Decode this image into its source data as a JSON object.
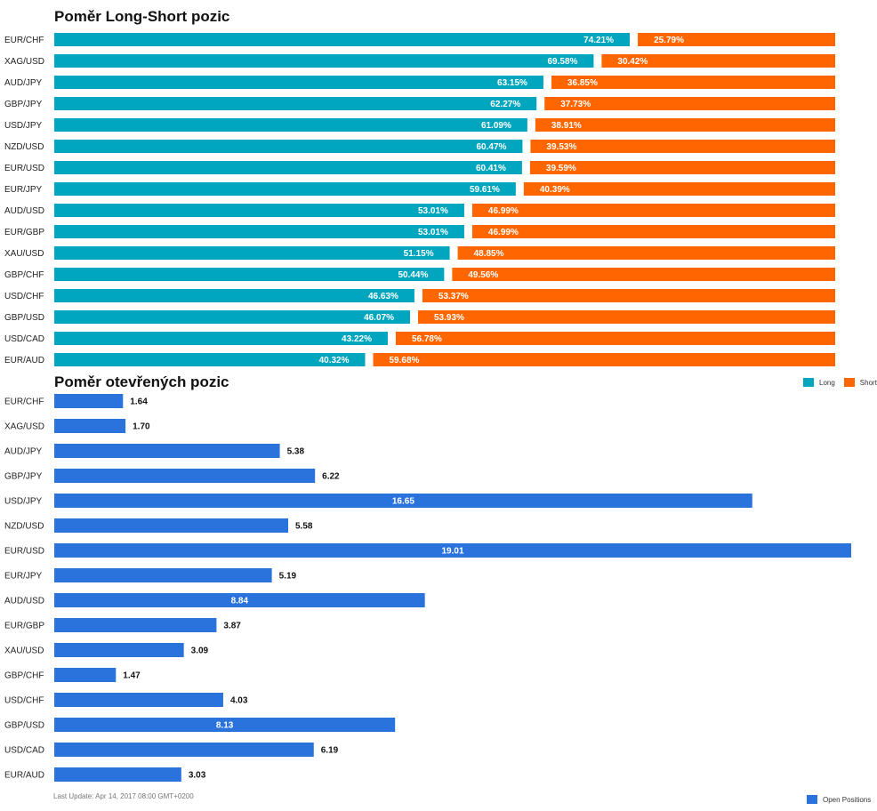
{
  "chart_data": [
    {
      "type": "bar",
      "orientation": "horizontal",
      "stacked": true,
      "title": "Poměr Long-Short pozic",
      "categories": [
        "EUR/CHF",
        "XAG/USD",
        "AUD/JPY",
        "GBP/JPY",
        "USD/JPY",
        "NZD/USD",
        "EUR/USD",
        "EUR/JPY",
        "AUD/USD",
        "EUR/GBP",
        "XAU/USD",
        "GBP/CHF",
        "USD/CHF",
        "GBP/USD",
        "USD/CAD",
        "EUR/AUD"
      ],
      "series": [
        {
          "name": "Long",
          "color": "#00a6be",
          "values": [
            74.21,
            69.58,
            63.15,
            62.27,
            61.09,
            60.47,
            60.41,
            59.61,
            53.01,
            53.01,
            51.15,
            50.44,
            46.63,
            46.07,
            43.22,
            40.32
          ]
        },
        {
          "name": "Short",
          "color": "#ff6600",
          "values": [
            25.79,
            30.42,
            36.85,
            37.73,
            38.91,
            39.53,
            39.59,
            40.39,
            46.99,
            46.99,
            48.85,
            49.56,
            53.37,
            53.93,
            56.78,
            59.68
          ]
        }
      ],
      "value_suffix": "%",
      "xlim": [
        0,
        100
      ],
      "grid": false,
      "legend": "bottom-right"
    },
    {
      "type": "bar",
      "orientation": "horizontal",
      "title": "Poměr otevřených pozic",
      "categories": [
        "EUR/CHF",
        "XAG/USD",
        "AUD/JPY",
        "GBP/JPY",
        "USD/JPY",
        "NZD/USD",
        "EUR/USD",
        "EUR/JPY",
        "AUD/USD",
        "EUR/GBP",
        "XAU/USD",
        "GBP/CHF",
        "USD/CHF",
        "GBP/USD",
        "USD/CAD",
        "EUR/AUD"
      ],
      "series": [
        {
          "name": "Open Positions",
          "color": "#2a72dc",
          "values": [
            1.64,
            1.7,
            5.38,
            6.22,
            16.65,
            5.58,
            19.01,
            5.19,
            8.84,
            3.87,
            3.09,
            1.47,
            4.03,
            8.13,
            6.19,
            3.03
          ]
        }
      ],
      "xlim": [
        0,
        19.01
      ],
      "grid": false,
      "legend": "bottom-right"
    }
  ],
  "footer": {
    "last_update": "Last Update: Apr 14, 2017 08:00 GMT+0200"
  }
}
